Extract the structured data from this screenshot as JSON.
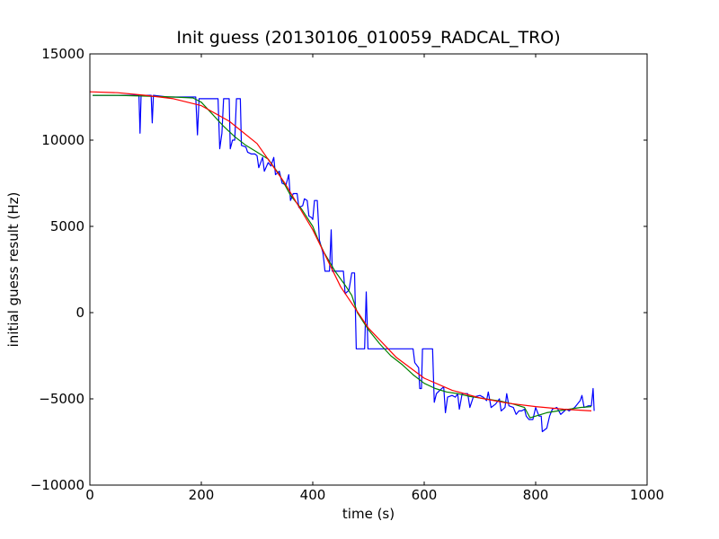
{
  "chart_data": {
    "type": "line",
    "title": "Init guess (20130106_010059_RADCAL_TRO)",
    "xlabel": "time (s)",
    "ylabel": "initial guess result (Hz)",
    "xlim": [
      0,
      1000
    ],
    "ylim": [
      -10000,
      15000
    ],
    "x_ticks": [
      0,
      200,
      400,
      600,
      800,
      1000
    ],
    "y_ticks": [
      -10000,
      -5000,
      0,
      5000,
      10000,
      15000
    ],
    "x_tick_labels": [
      "0",
      "200",
      "400",
      "600",
      "800",
      "1000"
    ],
    "y_tick_labels": [
      "−10000",
      "−5000",
      "0",
      "5000",
      "10000",
      "15000"
    ],
    "grid": false,
    "legend": "none",
    "series": [
      {
        "color": "#0000ff",
        "points": [
          [
            5,
            12600
          ],
          [
            30,
            12600
          ],
          [
            60,
            12600
          ],
          [
            88,
            12600
          ],
          [
            90,
            10400
          ],
          [
            92,
            12600
          ],
          [
            110,
            12600
          ],
          [
            112,
            11000
          ],
          [
            114,
            12600
          ],
          [
            140,
            12500
          ],
          [
            170,
            12500
          ],
          [
            190,
            12500
          ],
          [
            193,
            10300
          ],
          [
            196,
            12400
          ],
          [
            215,
            12400
          ],
          [
            230,
            12400
          ],
          [
            233,
            9500
          ],
          [
            237,
            10400
          ],
          [
            240,
            12400
          ],
          [
            250,
            12400
          ],
          [
            252,
            9500
          ],
          [
            256,
            10000
          ],
          [
            260,
            10000
          ],
          [
            263,
            12400
          ],
          [
            270,
            12400
          ],
          [
            272,
            9700
          ],
          [
            280,
            9600
          ],
          [
            283,
            9300
          ],
          [
            290,
            9200
          ],
          [
            296,
            9200
          ],
          [
            300,
            9100
          ],
          [
            303,
            8400
          ],
          [
            310,
            9000
          ],
          [
            313,
            8200
          ],
          [
            320,
            8700
          ],
          [
            325,
            8500
          ],
          [
            330,
            9000
          ],
          [
            333,
            8000
          ],
          [
            340,
            8200
          ],
          [
            345,
            7500
          ],
          [
            352,
            7400
          ],
          [
            357,
            8000
          ],
          [
            360,
            6500
          ],
          [
            365,
            6900
          ],
          [
            372,
            6900
          ],
          [
            375,
            6100
          ],
          [
            382,
            6200
          ],
          [
            385,
            6600
          ],
          [
            390,
            6500
          ],
          [
            393,
            5600
          ],
          [
            398,
            5500
          ],
          [
            400,
            5400
          ],
          [
            403,
            6500
          ],
          [
            408,
            6500
          ],
          [
            412,
            4200
          ],
          [
            418,
            3500
          ],
          [
            420,
            3000
          ],
          [
            422,
            2400
          ],
          [
            430,
            2400
          ],
          [
            433,
            4800
          ],
          [
            435,
            2400
          ],
          [
            445,
            2400
          ],
          [
            455,
            2400
          ],
          [
            458,
            1100
          ],
          [
            465,
            1300
          ],
          [
            470,
            2300
          ],
          [
            475,
            2300
          ],
          [
            478,
            -2100
          ],
          [
            488,
            -2100
          ],
          [
            493,
            -2100
          ],
          [
            496,
            1200
          ],
          [
            499,
            -2100
          ],
          [
            510,
            -2100
          ],
          [
            520,
            -2100
          ],
          [
            523,
            -2100
          ],
          [
            540,
            -2100
          ],
          [
            555,
            -2100
          ],
          [
            560,
            -2100
          ],
          [
            570,
            -2100
          ],
          [
            580,
            -2100
          ],
          [
            583,
            -2900
          ],
          [
            590,
            -3200
          ],
          [
            592,
            -4400
          ],
          [
            595,
            -4400
          ],
          [
            597,
            -2100
          ],
          [
            615,
            -2100
          ],
          [
            618,
            -5200
          ],
          [
            622,
            -4700
          ],
          [
            628,
            -4500
          ],
          [
            635,
            -4300
          ],
          [
            638,
            -5800
          ],
          [
            642,
            -4900
          ],
          [
            650,
            -4800
          ],
          [
            656,
            -4900
          ],
          [
            660,
            -4700
          ],
          [
            663,
            -5600
          ],
          [
            668,
            -4700
          ],
          [
            672,
            -4700
          ],
          [
            678,
            -4700
          ],
          [
            682,
            -5500
          ],
          [
            688,
            -4900
          ],
          [
            700,
            -4800
          ],
          [
            706,
            -4900
          ],
          [
            712,
            -5100
          ],
          [
            715,
            -4600
          ],
          [
            720,
            -5500
          ],
          [
            728,
            -5300
          ],
          [
            735,
            -5000
          ],
          [
            738,
            -5700
          ],
          [
            745,
            -5500
          ],
          [
            748,
            -4700
          ],
          [
            752,
            -5400
          ],
          [
            760,
            -5500
          ],
          [
            765,
            -5900
          ],
          [
            770,
            -5700
          ],
          [
            775,
            -5700
          ],
          [
            780,
            -5600
          ],
          [
            783,
            -6000
          ],
          [
            788,
            -6200
          ],
          [
            795,
            -6200
          ],
          [
            800,
            -5500
          ],
          [
            806,
            -6000
          ],
          [
            810,
            -6000
          ],
          [
            812,
            -6900
          ],
          [
            820,
            -6700
          ],
          [
            825,
            -6000
          ],
          [
            830,
            -5600
          ],
          [
            838,
            -5500
          ],
          [
            845,
            -5900
          ],
          [
            855,
            -5600
          ],
          [
            860,
            -5700
          ],
          [
            870,
            -5500
          ],
          [
            875,
            -5300
          ],
          [
            880,
            -5100
          ],
          [
            883,
            -4800
          ],
          [
            887,
            -5500
          ],
          [
            895,
            -5400
          ],
          [
            900,
            -5400
          ],
          [
            903,
            -4400
          ],
          [
            905,
            -5700
          ]
        ]
      },
      {
        "color": "#008000",
        "points": [
          [
            5,
            12600
          ],
          [
            50,
            12600
          ],
          [
            100,
            12550
          ],
          [
            150,
            12500
          ],
          [
            185,
            12450
          ],
          [
            200,
            12200
          ],
          [
            220,
            11500
          ],
          [
            240,
            10800
          ],
          [
            260,
            10200
          ],
          [
            280,
            9700
          ],
          [
            300,
            9300
          ],
          [
            320,
            8900
          ],
          [
            340,
            8000
          ],
          [
            360,
            6800
          ],
          [
            380,
            6000
          ],
          [
            400,
            5000
          ],
          [
            410,
            4200
          ],
          [
            420,
            3500
          ],
          [
            440,
            2400
          ],
          [
            460,
            1500
          ],
          [
            470,
            1000
          ],
          [
            480,
            0
          ],
          [
            500,
            -1000
          ],
          [
            520,
            -1800
          ],
          [
            540,
            -2500
          ],
          [
            560,
            -3000
          ],
          [
            580,
            -3600
          ],
          [
            600,
            -4100
          ],
          [
            620,
            -4400
          ],
          [
            640,
            -4600
          ],
          [
            660,
            -4700
          ],
          [
            680,
            -4850
          ],
          [
            700,
            -4950
          ],
          [
            720,
            -5050
          ],
          [
            740,
            -5150
          ],
          [
            760,
            -5300
          ],
          [
            780,
            -5500
          ],
          [
            790,
            -6100
          ],
          [
            800,
            -6000
          ],
          [
            820,
            -5800
          ],
          [
            840,
            -5700
          ],
          [
            860,
            -5600
          ],
          [
            880,
            -5500
          ],
          [
            900,
            -5450
          ]
        ]
      },
      {
        "color": "#ff0000",
        "points": [
          [
            0,
            12800
          ],
          [
            50,
            12750
          ],
          [
            100,
            12600
          ],
          [
            150,
            12400
          ],
          [
            200,
            12000
          ],
          [
            250,
            11100
          ],
          [
            300,
            9800
          ],
          [
            350,
            7500
          ],
          [
            400,
            4800
          ],
          [
            450,
            1500
          ],
          [
            500,
            -900
          ],
          [
            550,
            -2600
          ],
          [
            600,
            -3800
          ],
          [
            650,
            -4500
          ],
          [
            700,
            -4950
          ],
          [
            750,
            -5250
          ],
          [
            800,
            -5450
          ],
          [
            850,
            -5600
          ],
          [
            900,
            -5700
          ]
        ]
      }
    ]
  }
}
